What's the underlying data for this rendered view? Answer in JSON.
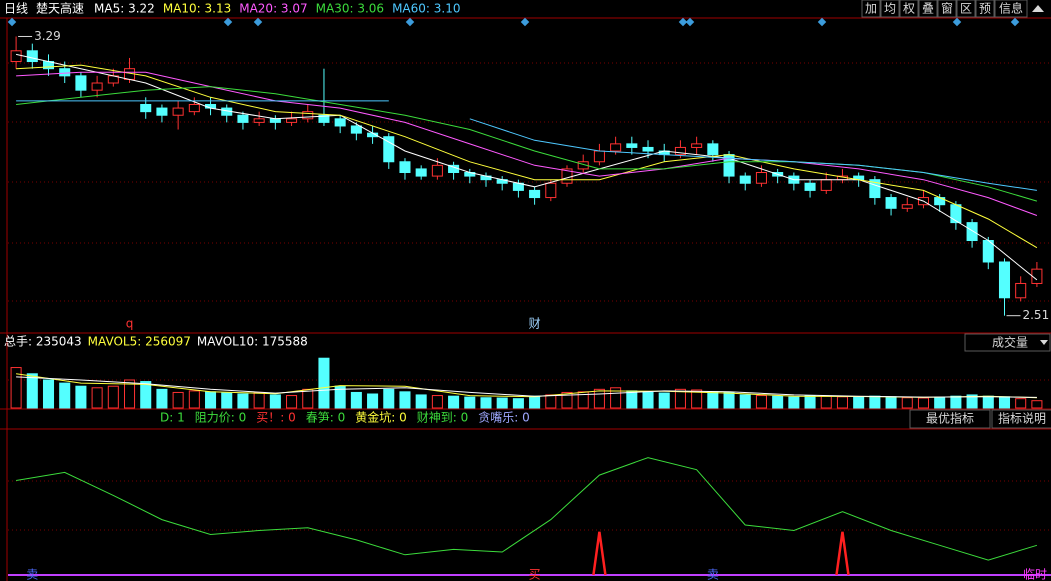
{
  "toolbar": {
    "period": "日线",
    "name": "楚天高速",
    "buttons": [
      "加",
      "均",
      "权",
      "叠",
      "窗",
      "区",
      "预",
      "信息"
    ]
  },
  "chart_data": [
    {
      "type": "candlestick",
      "open": [
        3.22,
        3.25,
        3.22,
        3.2,
        3.18,
        3.14,
        3.16,
        3.17,
        3.1,
        3.09,
        3.07,
        3.08,
        3.1,
        3.09,
        3.07,
        3.05,
        3.06,
        3.05,
        3.06,
        3.07,
        3.06,
        3.04,
        3.02,
        3.01,
        2.94,
        2.92,
        2.9,
        2.93,
        2.91,
        2.9,
        2.89,
        2.88,
        2.86,
        2.84,
        2.88,
        2.92,
        2.94,
        2.97,
        2.99,
        2.98,
        2.97,
        2.96,
        2.98,
        2.99,
        2.96,
        2.9,
        2.88,
        2.91,
        2.9,
        2.88,
        2.86,
        2.89,
        2.9,
        2.89,
        2.84,
        2.81,
        2.82,
        2.84,
        2.82,
        2.77,
        2.72,
        2.66,
        2.56,
        2.6
      ],
      "high": [
        3.29,
        3.27,
        3.24,
        3.22,
        3.19,
        3.18,
        3.2,
        3.23,
        3.12,
        3.1,
        3.11,
        3.12,
        3.12,
        3.1,
        3.08,
        3.08,
        3.07,
        3.08,
        3.1,
        3.2,
        3.07,
        3.05,
        3.04,
        3.02,
        2.95,
        2.93,
        2.95,
        2.94,
        2.92,
        2.91,
        2.9,
        2.89,
        2.87,
        2.89,
        2.93,
        2.96,
        2.99,
        3.01,
        3.01,
        3.0,
        2.99,
        3.0,
        3.01,
        3.0,
        2.97,
        2.91,
        2.93,
        2.92,
        2.91,
        2.89,
        2.91,
        2.92,
        2.91,
        2.9,
        2.85,
        2.84,
        2.86,
        2.85,
        2.83,
        2.78,
        2.73,
        2.67,
        2.62,
        2.66
      ],
      "low": [
        3.2,
        3.2,
        3.18,
        3.16,
        3.12,
        3.12,
        3.15,
        3.16,
        3.06,
        3.05,
        3.03,
        3.07,
        3.07,
        3.05,
        3.03,
        3.04,
        3.03,
        3.04,
        3.05,
        3.04,
        3.02,
        3.0,
        2.99,
        2.92,
        2.89,
        2.89,
        2.89,
        2.89,
        2.88,
        2.87,
        2.86,
        2.84,
        2.82,
        2.83,
        2.87,
        2.91,
        2.93,
        2.96,
        2.96,
        2.95,
        2.94,
        2.95,
        2.96,
        2.94,
        2.88,
        2.86,
        2.87,
        2.88,
        2.86,
        2.84,
        2.85,
        2.88,
        2.87,
        2.82,
        2.79,
        2.8,
        2.81,
        2.8,
        2.75,
        2.7,
        2.64,
        2.51,
        2.55,
        2.59
      ],
      "close": [
        3.25,
        3.22,
        3.2,
        3.18,
        3.14,
        3.16,
        3.18,
        3.2,
        3.08,
        3.07,
        3.09,
        3.1,
        3.09,
        3.07,
        3.05,
        3.06,
        3.05,
        3.06,
        3.08,
        3.05,
        3.04,
        3.02,
        3.01,
        2.94,
        2.91,
        2.9,
        2.93,
        2.91,
        2.9,
        2.89,
        2.88,
        2.86,
        2.84,
        2.88,
        2.92,
        2.94,
        2.97,
        2.99,
        2.98,
        2.97,
        2.96,
        2.98,
        2.99,
        2.96,
        2.9,
        2.88,
        2.91,
        2.9,
        2.88,
        2.86,
        2.89,
        2.9,
        2.89,
        2.84,
        2.81,
        2.82,
        2.84,
        2.82,
        2.77,
        2.72,
        2.66,
        2.56,
        2.6,
        2.64
      ],
      "up_color": "#ff3232",
      "down_color": "#54ffff",
      "ylim": [
        2.47,
        3.35
      ],
      "high_label": 3.29,
      "low_label": 2.51,
      "markers": [
        {
          "text": "q",
          "at": 7,
          "color": "#ff3232"
        },
        {
          "text": "财",
          "at": 32,
          "color": "#9fd4ff"
        }
      ],
      "series": [
        {
          "name": "MA5: 3.22",
          "color": "#ffffff",
          "x": [
            0,
            4,
            8,
            12,
            16,
            20,
            24,
            28,
            32,
            36,
            40,
            44,
            48,
            52,
            56,
            60,
            63
          ],
          "values": [
            3.24,
            3.2,
            3.16,
            3.09,
            3.06,
            3.07,
            2.97,
            2.91,
            2.87,
            2.92,
            2.97,
            2.95,
            2.89,
            2.89,
            2.83,
            2.72,
            2.61
          ]
        },
        {
          "name": "MA10: 3.13",
          "color": "#ffff3c",
          "x": [
            0,
            4,
            8,
            12,
            16,
            20,
            24,
            28,
            32,
            36,
            40,
            44,
            48,
            52,
            56,
            60,
            63
          ],
          "values": [
            3.2,
            3.21,
            3.18,
            3.12,
            3.08,
            3.07,
            3.01,
            2.94,
            2.89,
            2.89,
            2.94,
            2.96,
            2.92,
            2.89,
            2.86,
            2.78,
            2.7
          ]
        },
        {
          "name": "MA20: 3.07",
          "color": "#ff5aff",
          "x": [
            0,
            4,
            8,
            12,
            16,
            20,
            24,
            28,
            32,
            36,
            40,
            44,
            48,
            52,
            56,
            60,
            63
          ],
          "values": [
            3.18,
            3.19,
            3.19,
            3.15,
            3.11,
            3.09,
            3.05,
            2.99,
            2.93,
            2.9,
            2.92,
            2.95,
            2.94,
            2.92,
            2.89,
            2.84,
            2.79
          ]
        },
        {
          "name": "MA30: 3.06",
          "color": "#3cdc3c",
          "x": [
            0,
            4,
            8,
            12,
            16,
            20,
            24,
            28,
            32,
            36,
            40,
            44,
            48,
            52,
            56,
            60,
            63
          ],
          "values": [
            3.1,
            3.12,
            3.14,
            3.15,
            3.13,
            3.1,
            3.07,
            3.03,
            2.97,
            2.92,
            2.92,
            2.94,
            2.94,
            2.93,
            2.91,
            2.87,
            2.83
          ]
        },
        {
          "name": "MA60: 3.10",
          "color": "#4ec8ff",
          "x": [
            0,
            4,
            8,
            12,
            16,
            23,
            24,
            28,
            32,
            36,
            40,
            44,
            48,
            52,
            56,
            60,
            63
          ],
          "values": [
            3.11,
            3.11,
            3.11,
            3.11,
            3.11,
            3.11,
            null,
            3.06,
            3.0,
            2.97,
            2.96,
            2.95,
            2.94,
            2.93,
            2.91,
            2.88,
            2.86
          ]
        }
      ]
    },
    {
      "type": "bar",
      "title": "成交量",
      "values": [
        1300000,
        1100000,
        900000,
        800000,
        700000,
        650000,
        700000,
        900000,
        850000,
        600000,
        500000,
        550000,
        520000,
        480000,
        450000,
        500000,
        420000,
        400000,
        600000,
        1600000,
        700000,
        500000,
        450000,
        600000,
        520000,
        420000,
        400000,
        380000,
        350000,
        330000,
        320000,
        300000,
        380000,
        420000,
        500000,
        520000,
        600000,
        650000,
        550000,
        500000,
        480000,
        600000,
        580000,
        520000,
        500000,
        420000,
        400000,
        380000,
        350000,
        400000,
        380000,
        360000,
        340000,
        380000,
        360000,
        330000,
        320000,
        340000,
        380000,
        420000,
        380000,
        360000,
        300000,
        235043
      ],
      "name": "总手: 235043",
      "name_color": "#ffffff",
      "ylim": [
        0,
        1800000
      ],
      "series": [
        {
          "name": "MAVOL5: 256097",
          "color": "#ffff3c",
          "x": [
            0,
            4,
            8,
            12,
            16,
            20,
            24,
            28,
            32,
            36,
            40,
            44,
            48,
            52,
            56,
            60,
            63
          ],
          "values": [
            1100000,
            800000,
            760000,
            520000,
            460000,
            720000,
            700000,
            400000,
            360000,
            550000,
            540000,
            480000,
            380000,
            370000,
            340000,
            380000,
            330000
          ]
        },
        {
          "name": "MAVOL10: 175588",
          "color": "#ffffff",
          "x": [
            0,
            4,
            8,
            12,
            16,
            20,
            24,
            28,
            32,
            36,
            40,
            44,
            48,
            52,
            56,
            60,
            63
          ],
          "values": [
            1000000,
            900000,
            780000,
            600000,
            480000,
            600000,
            650000,
            500000,
            380000,
            450000,
            550000,
            520000,
            420000,
            380000,
            350000,
            360000,
            340000
          ]
        }
      ]
    },
    {
      "type": "line",
      "labels": [
        {
          "text": "D: 1",
          "color": "#3cdc3c"
        },
        {
          "text": "阻力价: 0",
          "color": "#3cdc3c"
        },
        {
          "text": "买！: 0",
          "color": "#ff3232"
        },
        {
          "text": "春笋: 0",
          "color": "#3cdc3c"
        },
        {
          "text": "黄金坑: 0",
          "color": "#ffff3c"
        },
        {
          "text": "财神到: 0",
          "color": "#3cdc3c"
        },
        {
          "text": "贪嘴乐: 0",
          "color": "#9fa8ff"
        }
      ],
      "buttons": [
        "最优指标",
        "指标说明"
      ],
      "ylim": [
        0,
        100
      ],
      "series": [
        {
          "color": "#3cdc3c",
          "x": [
            0,
            3,
            6,
            9,
            12,
            15,
            18,
            21,
            24,
            27,
            30,
            33,
            36,
            39,
            42,
            45,
            48,
            51,
            54,
            57,
            60,
            63
          ],
          "values": [
            70,
            76,
            59,
            41,
            30,
            33,
            35,
            26,
            15,
            19,
            17,
            41,
            74,
            87,
            78,
            37,
            33,
            47,
            33,
            22,
            11,
            22
          ]
        }
      ],
      "signals": {
        "color": "#ff2020",
        "x": [
          36,
          51
        ],
        "values": [
          32,
          32
        ]
      },
      "markers": [
        {
          "text": "卖",
          "at": 1,
          "color": "#4e6bff"
        },
        {
          "text": "买",
          "at": 32,
          "color": "#ff3232"
        },
        {
          "text": "卖",
          "at": 43,
          "color": "#4e6bff"
        },
        {
          "text": "临时",
          "at": 63,
          "color": "#ff3cff"
        }
      ]
    }
  ]
}
